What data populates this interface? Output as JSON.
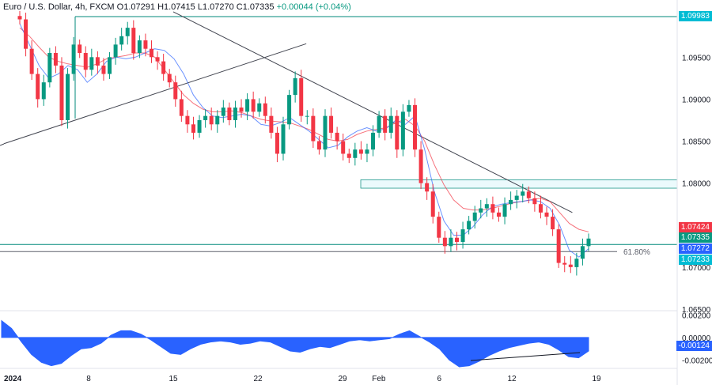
{
  "header": {
    "symbol": "Euro / U.S. Dollar, 4h, FXCM",
    "open": "O1.07291",
    "high": "H1.07415",
    "low": "L1.07270",
    "close": "C1.07335",
    "change": "+0.00044 (+0.04%)"
  },
  "colors": {
    "bull": "#089981",
    "bear": "#f23645",
    "ma_fast": "#2962ff",
    "ma_slow": "#f23645",
    "trendline": "#434651",
    "level": "#00897b",
    "macd_fill": "#2962ff",
    "axis_text": "#131722",
    "tag_red": "#f23645",
    "tag_green": "#089981",
    "tag_blue": "#2962ff",
    "tag_teal": "#00bcd4"
  },
  "chart_data": {
    "type": "candlestick",
    "instrument": "EUR/USD",
    "timeframe": "4h",
    "price_axis": {
      "ticks": [
        "1.09500",
        "1.09000",
        "1.08500",
        "1.08000",
        "1.07000",
        "1.06500"
      ],
      "ylim": [
        1.0635,
        1.1007
      ]
    },
    "time_axis": {
      "ticks": [
        "2024",
        "8",
        "15",
        "22",
        "29",
        "Feb",
        "6",
        "12",
        "19"
      ]
    },
    "levels": [
      {
        "price": 1.09983,
        "label": "1.09983",
        "style": "teal-line"
      },
      {
        "price": 1.0727,
        "style": "teal-line"
      },
      {
        "price": 1.07185,
        "label": "61.80%",
        "style": "fib-line"
      }
    ],
    "zones": [
      {
        "from": 1.0794,
        "to": 1.0804
      }
    ],
    "price_tags": [
      {
        "label": "1.07424",
        "color": "red"
      },
      {
        "label": "1.07335",
        "color": "green"
      },
      {
        "label": "1.07272",
        "color": "blue"
      },
      {
        "label": "1.07233",
        "color": "teal"
      }
    ],
    "trendlines": [
      {
        "name": "uptrend",
        "from": [
          "2024-01-01",
          1.0847
        ],
        "to": [
          "2024-01-26",
          1.0966
        ]
      },
      {
        "name": "downtrend",
        "from": [
          "2024-01-15",
          1.1004
        ],
        "to": [
          "2024-02-17",
          1.0765
        ]
      }
    ],
    "ohlc_path": [
      1.0995,
      1.096,
      1.093,
      1.09,
      1.092,
      1.0955,
      1.094,
      1.0875,
      1.093,
      1.0965,
      1.0955,
      1.0935,
      1.095,
      1.094,
      1.093,
      1.095,
      1.0965,
      1.0975,
      1.0985,
      1.0955,
      1.097,
      1.096,
      1.095,
      1.0945,
      1.093,
      1.092,
      1.09,
      1.088,
      1.087,
      1.086,
      1.0875,
      1.088,
      1.087,
      1.088,
      1.089,
      1.0875,
      1.089,
      1.0885,
      1.09,
      1.0885,
      1.0895,
      1.088,
      1.086,
      1.0835,
      1.087,
      1.0905,
      1.0925,
      1.088,
      1.088,
      1.085,
      1.084,
      1.088,
      1.086,
      1.085,
      1.0835,
      1.083,
      1.084,
      1.0835,
      1.084,
      1.086,
      1.088,
      1.086,
      1.088,
      1.084,
      1.0885,
      1.0893,
      1.084,
      1.08,
      1.079,
      1.076,
      1.0735,
      1.0725,
      1.0735,
      1.073,
      1.0745,
      1.0755,
      1.0765,
      1.077,
      1.0775,
      1.0765,
      1.076,
      1.0775,
      1.078,
      1.0785,
      1.079,
      1.0782,
      1.0775,
      1.0765,
      1.076,
      1.0745,
      1.0705,
      1.0703,
      1.07,
      1.071,
      1.0725,
      1.0734
    ],
    "ma_fast": [
      1.099,
      1.0965,
      1.094,
      1.0925,
      1.093,
      1.094,
      1.0935,
      1.092,
      1.093,
      1.0945,
      1.095,
      1.0948,
      1.095,
      1.0955,
      1.096,
      1.0958,
      1.0948,
      1.093,
      1.0905,
      1.089,
      1.088,
      1.0878,
      1.088,
      1.0882,
      1.088,
      1.087,
      1.0868,
      1.0872,
      1.0878,
      1.087,
      1.0862,
      1.0852,
      1.0842,
      1.0845,
      1.0855,
      1.0862,
      1.0866,
      1.0862,
      1.0865,
      1.0875,
      1.087,
      1.088,
      1.084,
      1.079,
      1.0755,
      1.0738,
      1.0738,
      1.0748,
      1.0762,
      1.0772,
      1.0775,
      1.0777,
      1.0778,
      1.078,
      1.0778,
      1.077,
      1.075,
      1.072,
      1.0712,
      1.0722
    ],
    "ma_slow": [
      1.0985,
      1.0975,
      1.0962,
      1.095,
      1.0945,
      1.0942,
      1.094,
      1.0938,
      1.0942,
      1.0948,
      1.095,
      1.0952,
      1.0955,
      1.0955,
      1.095,
      1.0935,
      1.092,
      1.0905,
      1.0895,
      1.0888,
      1.0885,
      1.0885,
      1.0886,
      1.0884,
      1.088,
      1.0876,
      1.0874,
      1.0873,
      1.0872,
      1.0868,
      1.0864,
      1.0858,
      1.0852,
      1.085,
      1.0852,
      1.0858,
      1.0862,
      1.0864,
      1.0866,
      1.0872,
      1.0876,
      1.0868,
      1.085,
      1.0822,
      1.0798,
      1.078,
      1.077,
      1.0768,
      1.0768,
      1.077,
      1.0773,
      1.0776,
      1.0778,
      1.078,
      1.0782,
      1.0778,
      1.0765,
      1.0752,
      1.0745,
      1.0742
    ],
    "indicator": {
      "name": "MACD",
      "ticks": [
        "0.00200",
        "0.00000",
        "-0.00200"
      ],
      "ylim": [
        -0.0026,
        0.0021
      ],
      "current_label": "-0.00124",
      "values": [
        0.0015,
        0.0008,
        -0.0004,
        -0.0015,
        -0.0022,
        -0.0025,
        -0.0023,
        -0.0016,
        -0.001,
        -0.0009,
        -0.0005,
        0.0002,
        0.0006,
        0.0006,
        0.0003,
        -0.0002,
        -0.0008,
        -0.0014,
        -0.0015,
        -0.001,
        -0.0006,
        -0.0004,
        -0.0003,
        -0.0004,
        -0.0006,
        -0.0005,
        -0.0003,
        -0.0004,
        -0.0008,
        -0.0012,
        -0.0013,
        -0.001,
        -0.0008,
        -0.0009,
        -0.0006,
        -0.0003,
        -0.0002,
        -0.0003,
        -0.0002,
        -0.0001,
        0.0003,
        0.0006,
        0.0001,
        -0.0004,
        -0.001,
        -0.002,
        -0.0026,
        -0.0025,
        -0.0021,
        -0.0016,
        -0.0012,
        -0.0009,
        -0.0007,
        -0.0005,
        -0.0004,
        -0.0006,
        -0.0011,
        -0.0017,
        -0.0018,
        -0.0012
      ]
    }
  }
}
